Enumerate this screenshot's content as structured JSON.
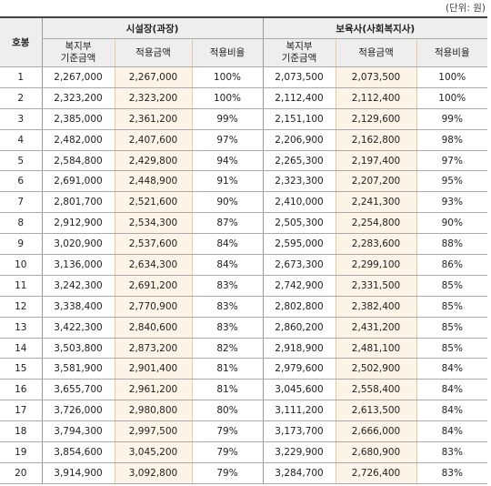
{
  "unit_note": "(단위: 원)",
  "headers": {
    "step": "호봉",
    "group1": "시설장(과장)",
    "group2": "보육사(사회복지사)",
    "base_line1": "복지부",
    "base_line2": "기준금액",
    "applied": "적용금액",
    "ratio": "적용비율"
  },
  "rows": [
    {
      "step": "1",
      "a_base": "2,267,000",
      "a_applied": "2,267,000",
      "a_ratio": "100%",
      "b_base": "2,073,500",
      "b_applied": "2,073,500",
      "b_ratio": "100%"
    },
    {
      "step": "2",
      "a_base": "2,323,200",
      "a_applied": "2,323,200",
      "a_ratio": "100%",
      "b_base": "2,112,400",
      "b_applied": "2,112,400",
      "b_ratio": "100%"
    },
    {
      "step": "3",
      "a_base": "2,385,000",
      "a_applied": "2,361,200",
      "a_ratio": "99%",
      "b_base": "2,151,100",
      "b_applied": "2,129,600",
      "b_ratio": "99%"
    },
    {
      "step": "4",
      "a_base": "2,482,000",
      "a_applied": "2,407,600",
      "a_ratio": "97%",
      "b_base": "2,206,900",
      "b_applied": "2,162,800",
      "b_ratio": "98%"
    },
    {
      "step": "5",
      "a_base": "2,584,800",
      "a_applied": "2,429,800",
      "a_ratio": "94%",
      "b_base": "2,265,300",
      "b_applied": "2,197,400",
      "b_ratio": "97%"
    },
    {
      "step": "6",
      "a_base": "2,691,000",
      "a_applied": "2,448,900",
      "a_ratio": "91%",
      "b_base": "2,323,300",
      "b_applied": "2,207,200",
      "b_ratio": "95%"
    },
    {
      "step": "7",
      "a_base": "2,801,700",
      "a_applied": "2,521,600",
      "a_ratio": "90%",
      "b_base": "2,410,000",
      "b_applied": "2,241,300",
      "b_ratio": "93%"
    },
    {
      "step": "8",
      "a_base": "2,912,900",
      "a_applied": "2,534,300",
      "a_ratio": "87%",
      "b_base": "2,505,300",
      "b_applied": "2,254,800",
      "b_ratio": "90%"
    },
    {
      "step": "9",
      "a_base": "3,020,900",
      "a_applied": "2,537,600",
      "a_ratio": "84%",
      "b_base": "2,595,000",
      "b_applied": "2,283,600",
      "b_ratio": "88%"
    },
    {
      "step": "10",
      "a_base": "3,136,000",
      "a_applied": "2,634,300",
      "a_ratio": "84%",
      "b_base": "2,673,300",
      "b_applied": "2,299,100",
      "b_ratio": "86%"
    },
    {
      "step": "11",
      "a_base": "3,242,300",
      "a_applied": "2,691,200",
      "a_ratio": "83%",
      "b_base": "2,742,900",
      "b_applied": "2,331,500",
      "b_ratio": "85%"
    },
    {
      "step": "12",
      "a_base": "3,338,400",
      "a_applied": "2,770,900",
      "a_ratio": "83%",
      "b_base": "2,802,800",
      "b_applied": "2,382,400",
      "b_ratio": "85%"
    },
    {
      "step": "13",
      "a_base": "3,422,300",
      "a_applied": "2,840,600",
      "a_ratio": "83%",
      "b_base": "2,860,200",
      "b_applied": "2,431,200",
      "b_ratio": "85%"
    },
    {
      "step": "14",
      "a_base": "3,503,800",
      "a_applied": "2,873,200",
      "a_ratio": "82%",
      "b_base": "2,918,900",
      "b_applied": "2,481,100",
      "b_ratio": "85%"
    },
    {
      "step": "15",
      "a_base": "3,581,900",
      "a_applied": "2,901,400",
      "a_ratio": "81%",
      "b_base": "2,979,600",
      "b_applied": "2,502,900",
      "b_ratio": "84%"
    },
    {
      "step": "16",
      "a_base": "3,655,700",
      "a_applied": "2,961,200",
      "a_ratio": "81%",
      "b_base": "3,045,600",
      "b_applied": "2,558,400",
      "b_ratio": "84%"
    },
    {
      "step": "17",
      "a_base": "3,726,000",
      "a_applied": "2,980,800",
      "a_ratio": "80%",
      "b_base": "3,111,200",
      "b_applied": "2,613,500",
      "b_ratio": "84%"
    },
    {
      "step": "18",
      "a_base": "3,794,300",
      "a_applied": "2,997,500",
      "a_ratio": "79%",
      "b_base": "3,173,700",
      "b_applied": "2,666,000",
      "b_ratio": "84%"
    },
    {
      "step": "19",
      "a_base": "3,854,600",
      "a_applied": "3,045,200",
      "a_ratio": "79%",
      "b_base": "3,229,900",
      "b_applied": "2,680,900",
      "b_ratio": "83%"
    },
    {
      "step": "20",
      "a_base": "3,914,900",
      "a_applied": "3,092,800",
      "a_ratio": "79%",
      "b_base": "3,284,700",
      "b_applied": "2,726,400",
      "b_ratio": "83%"
    }
  ]
}
